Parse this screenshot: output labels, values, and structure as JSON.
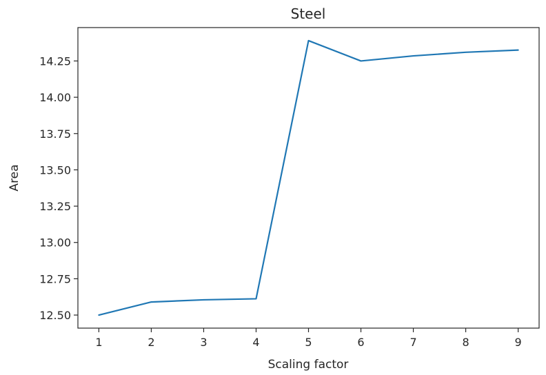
{
  "chart_data": {
    "type": "line",
    "title": "Steel",
    "xlabel": "Scaling factor",
    "ylabel": "Area",
    "x": [
      1,
      2,
      3,
      4,
      5,
      6,
      7,
      8,
      9
    ],
    "series": [
      {
        "values": [
          12.5,
          12.59,
          12.605,
          12.612,
          14.39,
          14.25,
          14.285,
          14.31,
          14.325
        ],
        "color": "#1f77b4"
      }
    ],
    "xlim": [
      0.6,
      9.4
    ],
    "ylim": [
      12.41,
      14.48
    ],
    "xticks": [
      1,
      2,
      3,
      4,
      5,
      6,
      7,
      8,
      9
    ],
    "xtick_labels": [
      "1",
      "2",
      "3",
      "4",
      "5",
      "6",
      "7",
      "8",
      "9"
    ],
    "yticks": [
      12.5,
      12.75,
      13.0,
      13.25,
      13.5,
      13.75,
      14.0,
      14.25
    ],
    "ytick_labels": [
      "12.50",
      "12.75",
      "13.00",
      "13.25",
      "13.50",
      "13.75",
      "14.00",
      "14.25"
    ],
    "grid": false,
    "legend": false
  }
}
